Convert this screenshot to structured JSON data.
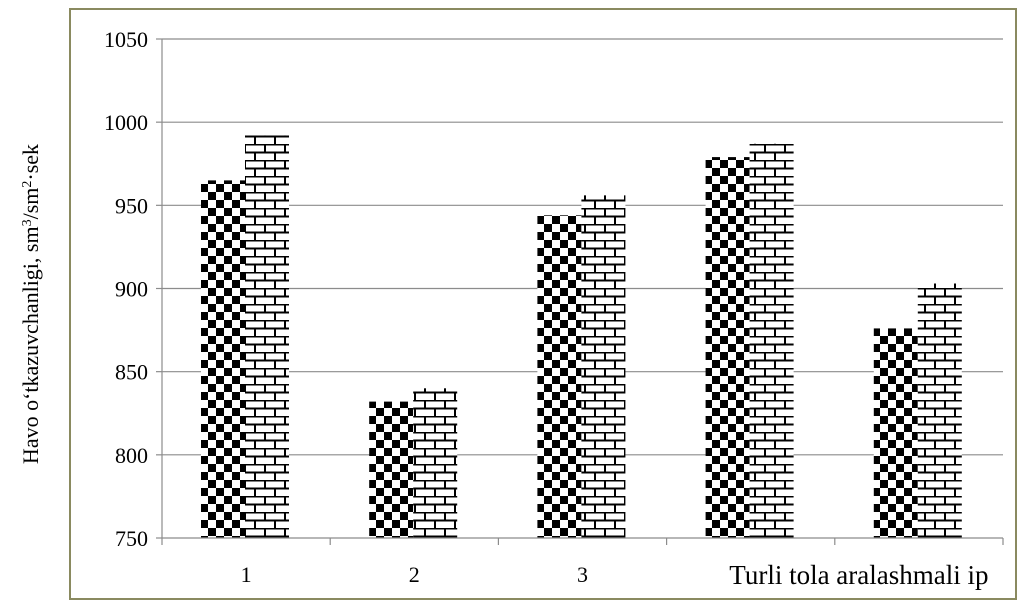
{
  "chart_data": {
    "type": "bar",
    "categories": [
      "1",
      "2",
      "3",
      "",
      "Turli tola aralashmali ip"
    ],
    "series": [
      {
        "pattern": "checkerboard",
        "values": [
          965,
          832,
          944,
          979,
          876
        ]
      },
      {
        "pattern": "brick",
        "values": [
          992,
          840,
          956,
          987,
          903
        ]
      }
    ],
    "ylabel_main": "Havo o‘tkazuvchanligi, sm",
    "ylabel_sup1": "3",
    "ylabel_mid": "/sm",
    "ylabel_sup2": "2",
    "ylabel_end": "·sek",
    "ylim": [
      750,
      1050
    ],
    "yticks": [
      750,
      800,
      850,
      900,
      950,
      1000,
      1050
    ],
    "grid": true,
    "legend": "none"
  }
}
